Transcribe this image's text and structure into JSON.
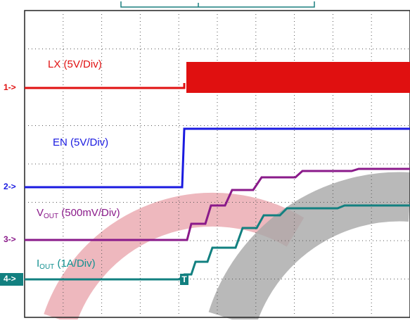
{
  "channels": [
    {
      "marker": "1->",
      "label": "LX (5V/Div)"
    },
    {
      "marker": "2->",
      "label": "EN (5V/Div)"
    },
    {
      "marker": "3->",
      "label": {
        "main": "V",
        "sub": "OUT",
        "rest": " (500mV/Div)"
      }
    },
    {
      "marker": "4->",
      "label": {
        "main": "I",
        "sub": "OUT",
        "rest": " (1A/Div)"
      }
    }
  ],
  "trigger_marker": "T"
}
